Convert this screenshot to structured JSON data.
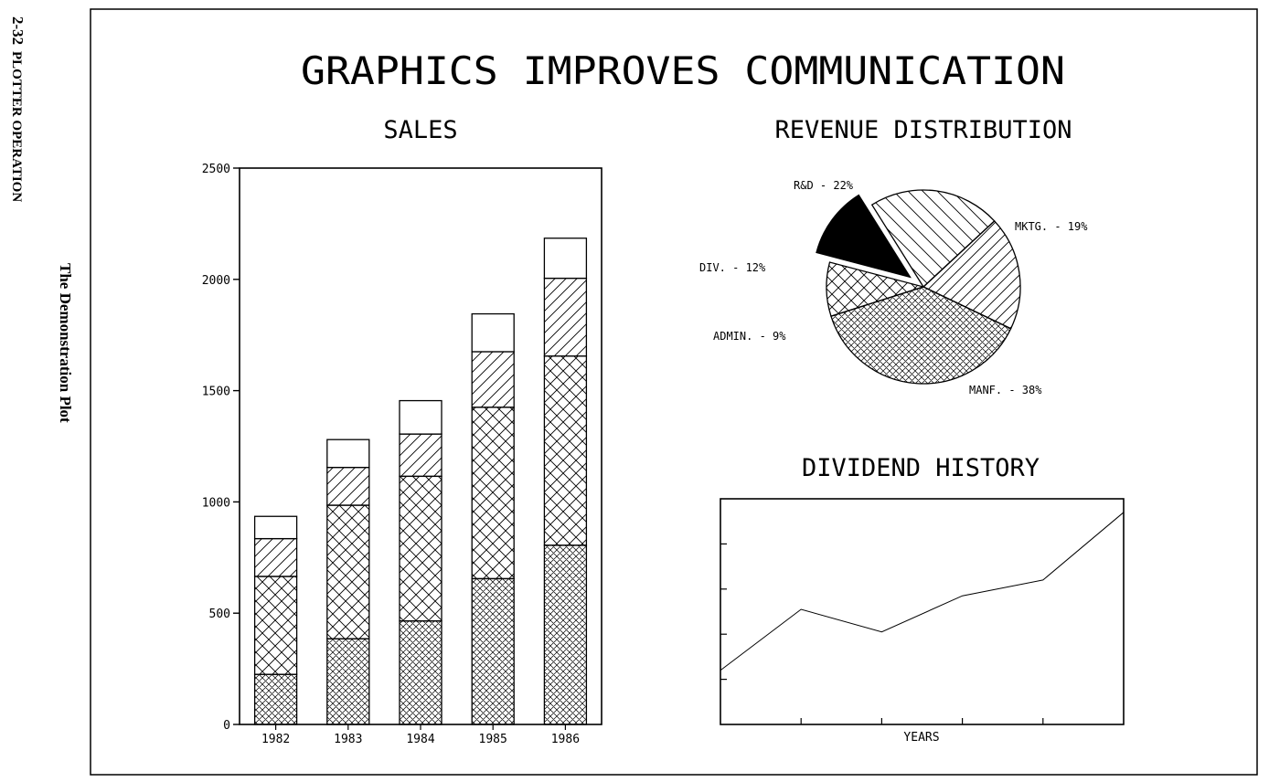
{
  "margin": {
    "page_ref": "2-32",
    "section": "PLOTTER OPERATION",
    "caption": "The Demonstration Plot"
  },
  "main_title": "GRAPHICS IMPROVES COMMUNICATION",
  "chart_data": [
    {
      "type": "bar",
      "title": "SALES",
      "stacked": true,
      "categories": [
        "1982",
        "1983",
        "1984",
        "1985",
        "1986"
      ],
      "ylim": [
        0,
        2500
      ],
      "yticks": [
        "0",
        "500",
        "1000",
        "1500",
        "2000",
        "2500"
      ],
      "series": [
        {
          "values": [
            225,
            385,
            465,
            655,
            805
          ],
          "pattern": "crosshatch-fine"
        },
        {
          "values": [
            440,
            600,
            650,
            770,
            850
          ],
          "pattern": "crosshatch-coarse"
        },
        {
          "values": [
            170,
            170,
            190,
            250,
            350
          ],
          "pattern": "diagonal"
        },
        {
          "values": [
            100,
            125,
            150,
            170,
            180
          ],
          "pattern": "blank"
        }
      ],
      "grid": false
    },
    {
      "type": "pie",
      "title": "REVENUE DISTRIBUTION",
      "slices": [
        {
          "label": "MKTG. - 19%",
          "value": 19,
          "pattern": "diagonal-fwd"
        },
        {
          "label": "MANF. - 38%",
          "value": 38,
          "pattern": "crosshatch-fine"
        },
        {
          "label": "ADMIN. - 9%",
          "value": 9,
          "pattern": "crosshatch-coarse"
        },
        {
          "label": "DIV. - 12%",
          "value": 12,
          "pattern": "solid",
          "exploded": true
        },
        {
          "label": "R&D - 22%",
          "value": 22,
          "pattern": "diagonal-back"
        }
      ]
    },
    {
      "type": "line",
      "title": "DIVIDEND HISTORY",
      "xlabel": "YEARS",
      "x": [
        0,
        1,
        2,
        3,
        4,
        5
      ],
      "y": [
        0.24,
        0.51,
        0.41,
        0.57,
        0.64,
        0.94
      ],
      "xlim": [
        0,
        5
      ],
      "ylim": [
        0,
        1
      ],
      "ytick_count": 5,
      "grid": false
    }
  ]
}
